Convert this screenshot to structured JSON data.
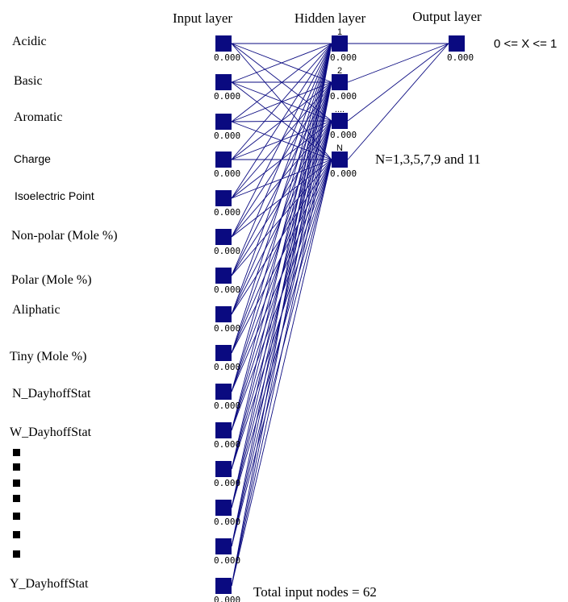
{
  "layer_titles": {
    "input": "Input layer",
    "hidden": "Hidden layer",
    "output": "Output layer"
  },
  "input_labels": [
    "Acidic",
    "Basic",
    "Aromatic",
    "Charge",
    "Isoelectric Point",
    "Non-polar (Mole %)",
    "Polar (Mole %)",
    "Aliphatic",
    "Tiny (Mole %)",
    "N_DayhoffStat",
    "W_DayhoffStat",
    "Y_DayhoffStat"
  ],
  "node_value": "0.000",
  "hidden_labels": [
    "1",
    "2",
    "....",
    "N"
  ],
  "output_range": "0 <= X <= 1",
  "hidden_count_note": "N=1,3,5,7,9 and 11",
  "total_inputs_note": "Total input nodes = 62",
  "colors": {
    "node": "#0a0a80",
    "text": "#000000"
  }
}
